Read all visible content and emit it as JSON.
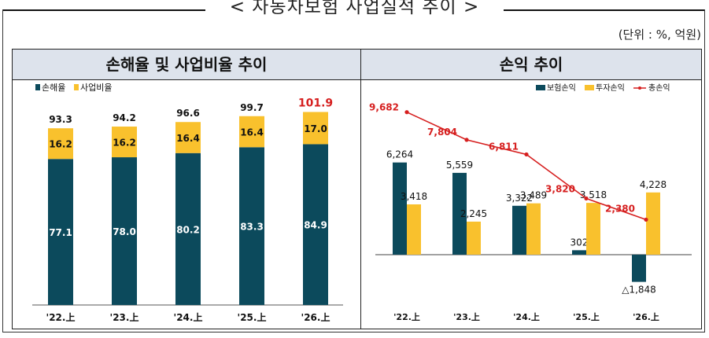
{
  "page": {
    "title": "< 자동차보험 사업실적 추이 >",
    "unit": "(단위 : %, 억원)"
  },
  "colors": {
    "navy": "#0c4a5c",
    "yellow": "#f9c12d",
    "red": "#d61f1f",
    "header_bg": "#dde3ec"
  },
  "chart_data": [
    {
      "type": "bar",
      "stacked": true,
      "title": "손해율 및 사업비율 추이",
      "categories": [
        "'22.上",
        "'23.上",
        "'24.上",
        "'25.上",
        "'26.上"
      ],
      "series": [
        {
          "name": "손해율",
          "values": [
            77.1,
            78.0,
            80.2,
            83.3,
            84.9
          ],
          "labels": [
            "77.1",
            "78.0",
            "80.2",
            "83.3",
            "84.9"
          ]
        },
        {
          "name": "사업비율",
          "values": [
            16.2,
            16.2,
            16.4,
            16.4,
            17.0
          ],
          "labels": [
            "16.2",
            "16.2",
            "16.4",
            "16.4",
            "17.0"
          ]
        }
      ],
      "totals": [
        93.3,
        94.2,
        96.6,
        99.7,
        101.9
      ],
      "total_labels": [
        "93.3",
        "94.2",
        "96.6",
        "99.7",
        "101.9"
      ],
      "highlight_total_index": 4,
      "ylim": [
        0,
        105
      ],
      "legend": "top-left"
    },
    {
      "type": "bar+line",
      "title": "손익 추이",
      "categories": [
        "'22.上",
        "'23.上",
        "'24.上",
        "'25.上",
        "'26.上"
      ],
      "series": [
        {
          "name": "보험손익",
          "type": "bar",
          "values": [
            6264,
            5559,
            3322,
            302,
            -1848
          ],
          "labels": [
            "6,264",
            "5,559",
            "3,322",
            "302",
            "△1,848"
          ]
        },
        {
          "name": "투자손익",
          "type": "bar",
          "values": [
            3418,
            2245,
            3489,
            3518,
            4228
          ],
          "labels": [
            "3,418",
            "2,245",
            "3,489",
            "3,518",
            "4,228"
          ]
        },
        {
          "name": "총손익",
          "type": "line",
          "values": [
            9682,
            7804,
            6811,
            3820,
            2380
          ],
          "labels": [
            "9,682",
            "7,804",
            "6,811",
            "3,820",
            "2,380"
          ]
        }
      ],
      "ylim": [
        -2600,
        10500
      ],
      "legend": "top-right"
    }
  ]
}
